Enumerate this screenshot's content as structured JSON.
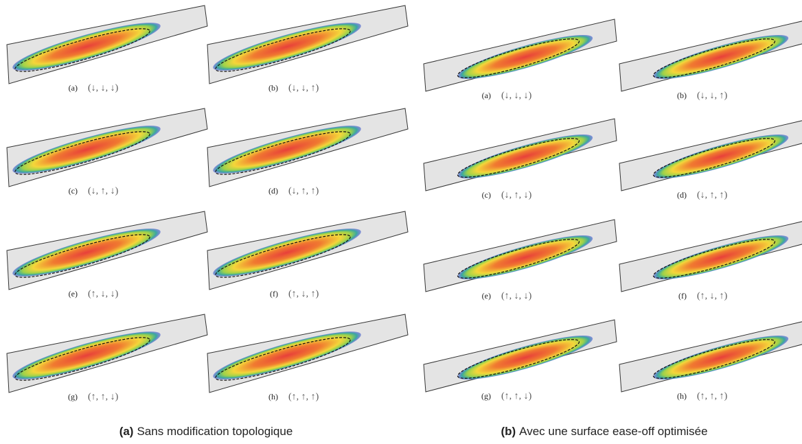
{
  "figures": [
    {
      "label": "(a)",
      "caption": "Sans modification topologique",
      "panels": [
        {
          "label": "(a)",
          "config": "(↓, ↓, ↓)"
        },
        {
          "label": "(b)",
          "config": "(↓, ↓, ↑)"
        },
        {
          "label": "(c)",
          "config": "(↓, ↑, ↓)"
        },
        {
          "label": "(d)",
          "config": "(↓, ↑, ↑)"
        },
        {
          "label": "(e)",
          "config": "(↑, ↓, ↓)"
        },
        {
          "label": "(f)",
          "config": "(↑, ↓, ↑)"
        },
        {
          "label": "(g)",
          "config": "(↑, ↑, ↓)"
        },
        {
          "label": "(h)",
          "config": "(↑, ↑, ↑)"
        }
      ]
    },
    {
      "label": "(b)",
      "caption": "Avec une surface ease-off optimisée",
      "panels": [
        {
          "label": "(a)",
          "config": "(↓, ↓, ↓)"
        },
        {
          "label": "(b)",
          "config": "(↓, ↓, ↑)"
        },
        {
          "label": "(c)",
          "config": "(↓, ↑, ↓)"
        },
        {
          "label": "(d)",
          "config": "(↓, ↑, ↑)"
        },
        {
          "label": "(e)",
          "config": "(↑, ↓, ↓)"
        },
        {
          "label": "(f)",
          "config": "(↑, ↓, ↑)"
        },
        {
          "label": "(g)",
          "config": "(↑, ↑, ↓)"
        },
        {
          "label": "(h)",
          "config": "(↑, ↑, ↑)"
        }
      ]
    }
  ]
}
